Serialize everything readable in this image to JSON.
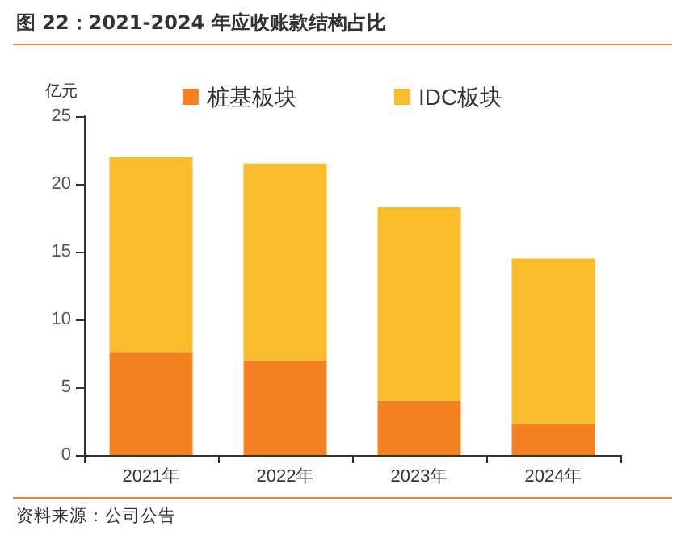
{
  "chart_data": {
    "type": "bar",
    "title": "图 22：2021-2024 年应收账款结构占比",
    "ylabel": "亿元",
    "annotations": [
      "资料来源：公司公告"
    ],
    "categories": [
      "2021年",
      "2022年",
      "2023年",
      "2024年"
    ],
    "stacked": true,
    "series": [
      {
        "name": "桩基板块",
        "color": "#f58220",
        "values": [
          7.6,
          7.0,
          4.0,
          2.3
        ]
      },
      {
        "name": "IDC板块",
        "color": "#f9bc2b",
        "values": [
          14.4,
          14.5,
          14.3,
          12.2
        ]
      }
    ],
    "ylim": [
      0,
      25
    ],
    "yticks": [
      0,
      5,
      10,
      15,
      20,
      25
    ],
    "grid": false,
    "legend": "top"
  }
}
